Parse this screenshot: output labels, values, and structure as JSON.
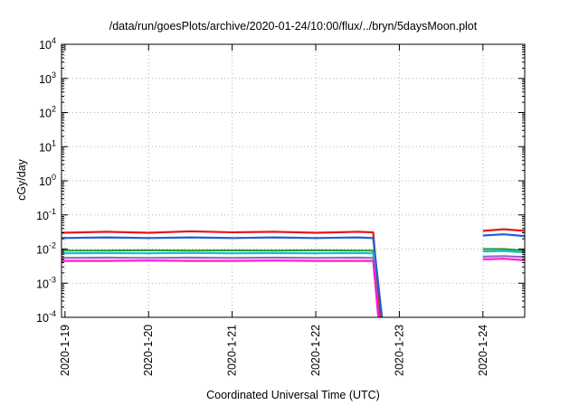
{
  "chart_data": {
    "type": "line",
    "title": "/data/run/goesPlots/archive/2020-01-24/10:00/flux/../bryn/5daysMoon.plot",
    "xlabel": "Coordinated Universal Time (UTC)",
    "ylabel": "cGy/day",
    "yscale": "log",
    "ylim": [
      0.0001,
      10000
    ],
    "xlim": [
      "2020-01-18 23:00",
      "2020-01-24 12:00"
    ],
    "x_tick_labels": [
      "2020-1-19",
      "2020-1-20",
      "2020-1-21",
      "2020-1-22",
      "2020-1-23",
      "2020-1-24"
    ],
    "y_ticks": [
      {
        "base": "10",
        "exp": "-4"
      },
      {
        "base": "10",
        "exp": "-3"
      },
      {
        "base": "10",
        "exp": "-2"
      },
      {
        "base": "10",
        "exp": "-1"
      },
      {
        "base": "10",
        "exp": "0"
      },
      {
        "base": "10",
        "exp": "1"
      },
      {
        "base": "10",
        "exp": "2"
      },
      {
        "base": "10",
        "exp": "3"
      },
      {
        "base": "10",
        "exp": "4"
      }
    ],
    "grid": true,
    "legend": "none",
    "series": [
      {
        "color": "#e41a1c",
        "x": [
          "2020-01-18 23:00",
          "2020-01-19 12:00",
          "2020-01-20 00:00",
          "2020-01-20 12:00",
          "2020-01-21 00:00",
          "2020-01-21 12:00",
          "2020-01-22 00:00",
          "2020-01-22 12:00",
          "2020-01-22 16:30",
          "2020-01-22 18:30",
          "2020-01-23 18:00",
          "2020-01-24 00:00",
          "2020-01-24 06:00",
          "2020-01-24 12:00"
        ],
        "y": [
          0.03,
          0.032,
          0.03,
          0.033,
          0.031,
          0.032,
          0.03,
          0.032,
          0.031,
          0.0001,
          null,
          0.034,
          0.038,
          0.034
        ]
      },
      {
        "color": "#1f5fd6",
        "x": [
          "2020-01-18 23:00",
          "2020-01-19 12:00",
          "2020-01-20 00:00",
          "2020-01-20 12:00",
          "2020-01-21 00:00",
          "2020-01-21 12:00",
          "2020-01-22 00:00",
          "2020-01-22 12:00",
          "2020-01-22 16:30",
          "2020-01-22 19:00",
          "2020-01-23 18:00",
          "2020-01-24 00:00",
          "2020-01-24 06:00",
          "2020-01-24 12:00"
        ],
        "y": [
          0.021,
          0.022,
          0.021,
          0.022,
          0.021,
          0.022,
          0.021,
          0.022,
          0.021,
          0.0001,
          null,
          0.025,
          0.027,
          0.024
        ]
      },
      {
        "color": "#2ca02c",
        "x": [
          "2020-01-18 23:00",
          "2020-01-19 12:00",
          "2020-01-20 00:00",
          "2020-01-20 12:00",
          "2020-01-21 00:00",
          "2020-01-21 12:00",
          "2020-01-22 00:00",
          "2020-01-22 12:00",
          "2020-01-22 16:30",
          "2020-01-22 18:00",
          "2020-01-23 18:00",
          "2020-01-24 00:00",
          "2020-01-24 06:00",
          "2020-01-24 12:00"
        ],
        "y": [
          0.009,
          0.009,
          0.0092,
          0.009,
          0.0091,
          0.009,
          0.0092,
          0.009,
          0.009,
          0.0001,
          null,
          0.01,
          0.01,
          0.009
        ]
      },
      {
        "color": "#17becf",
        "x": [
          "2020-01-18 23:00",
          "2020-01-19 12:00",
          "2020-01-20 00:00",
          "2020-01-20 12:00",
          "2020-01-21 00:00",
          "2020-01-21 12:00",
          "2020-01-22 00:00",
          "2020-01-22 12:00",
          "2020-01-22 16:30",
          "2020-01-22 18:00",
          "2020-01-23 18:00",
          "2020-01-24 00:00",
          "2020-01-24 06:00",
          "2020-01-24 12:00"
        ],
        "y": [
          0.0075,
          0.0076,
          0.0075,
          0.0077,
          0.0075,
          0.0076,
          0.0075,
          0.0076,
          0.0075,
          0.0001,
          null,
          0.0085,
          0.0088,
          0.008
        ]
      },
      {
        "color": "#9467bd",
        "x": [
          "2020-01-18 23:00",
          "2020-01-19 12:00",
          "2020-01-20 00:00",
          "2020-01-20 12:00",
          "2020-01-21 00:00",
          "2020-01-21 12:00",
          "2020-01-22 00:00",
          "2020-01-22 12:00",
          "2020-01-22 16:30",
          "2020-01-22 18:00",
          "2020-01-23 18:00",
          "2020-01-24 00:00",
          "2020-01-24 06:00",
          "2020-01-24 12:00"
        ],
        "y": [
          0.0055,
          0.0056,
          0.0055,
          0.0056,
          0.0055,
          0.0056,
          0.0055,
          0.0056,
          0.0055,
          0.0001,
          null,
          0.006,
          0.0062,
          0.0058
        ]
      },
      {
        "color": "#ff1ad9",
        "x": [
          "2020-01-18 23:00",
          "2020-01-19 12:00",
          "2020-01-20 00:00",
          "2020-01-20 12:00",
          "2020-01-21 00:00",
          "2020-01-21 12:00",
          "2020-01-22 00:00",
          "2020-01-22 12:00",
          "2020-01-22 16:30",
          "2020-01-22 18:00",
          "2020-01-23 17:30",
          "2020-01-24 00:00",
          "2020-01-24 06:00",
          "2020-01-24 12:00"
        ],
        "y": [
          0.0045,
          0.0045,
          0.0046,
          0.0045,
          0.0045,
          0.0046,
          0.0045,
          0.0045,
          0.0045,
          0.0001,
          null,
          0.005,
          0.0052,
          0.0047
        ]
      }
    ]
  }
}
